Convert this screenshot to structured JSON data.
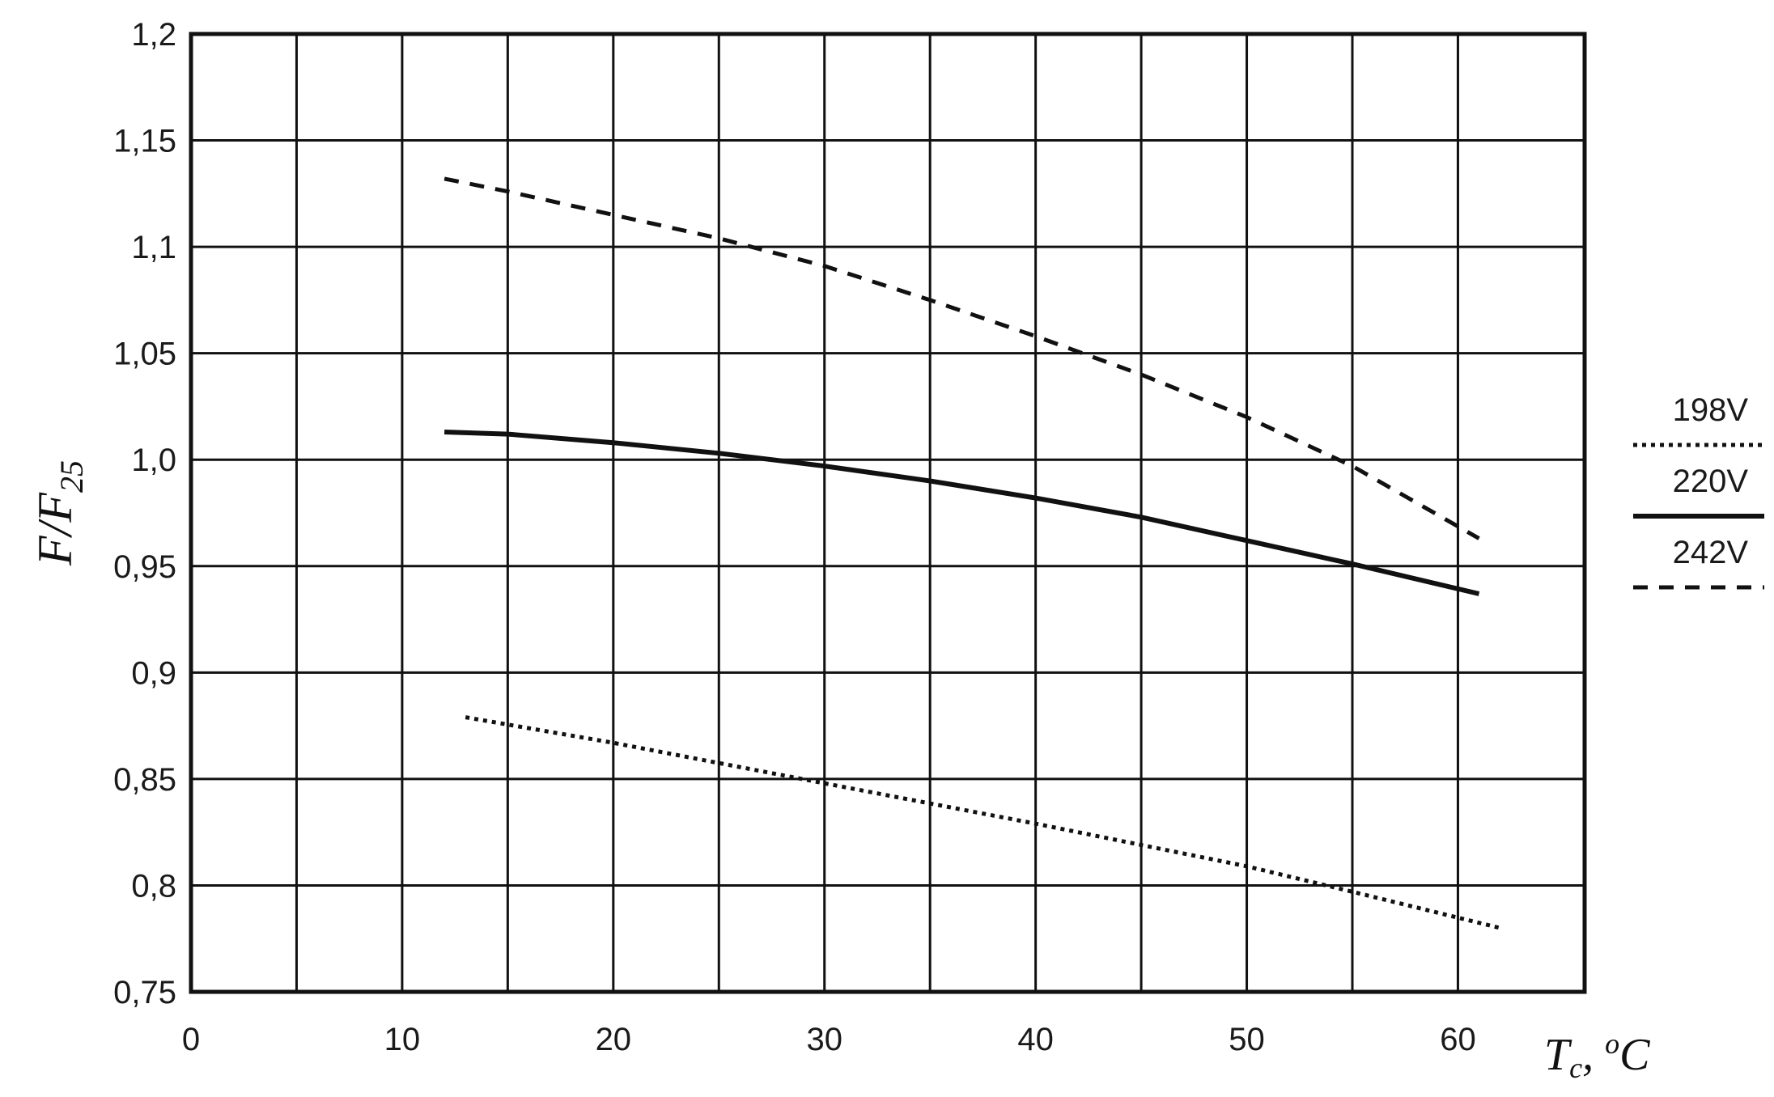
{
  "chart_data": {
    "type": "line",
    "title": "",
    "xlabel": {
      "main": "T",
      "sub": "c",
      "unit": "oC",
      "sep": ", "
    },
    "ylabel": {
      "main": "F/F",
      "sub": "25"
    },
    "xlim": [
      0,
      66
    ],
    "ylim": [
      0.75,
      1.2
    ],
    "x_ticks": [
      0,
      10,
      20,
      30,
      40,
      50,
      60
    ],
    "x_tick_labels": [
      "0",
      "10",
      "20",
      "30",
      "40",
      "50",
      "60"
    ],
    "x_gridlines": [
      5,
      10,
      15,
      20,
      25,
      30,
      35,
      40,
      45,
      50,
      55,
      60
    ],
    "y_ticks": [
      0.75,
      0.8,
      0.85,
      0.9,
      0.95,
      1.0,
      1.05,
      1.1,
      1.15,
      1.2
    ],
    "y_tick_labels": [
      "0,75",
      "0,8",
      "0,85",
      "0,9",
      "0,95",
      "1,0",
      "1,05",
      "1,1",
      "1,15",
      "1,2"
    ],
    "grid": true,
    "legend_position": "right",
    "series": [
      {
        "name": "198V",
        "style": "dotted",
        "color": "#111111",
        "x": [
          13,
          20,
          30,
          40,
          50,
          55,
          62
        ],
        "y": [
          0.879,
          0.867,
          0.848,
          0.829,
          0.809,
          0.797,
          0.78
        ]
      },
      {
        "name": "220V",
        "style": "solid",
        "color": "#111111",
        "x": [
          12,
          15,
          20,
          25,
          30,
          35,
          40,
          45,
          50,
          55,
          61
        ],
        "y": [
          1.013,
          1.012,
          1.008,
          1.003,
          0.997,
          0.99,
          0.982,
          0.973,
          0.962,
          0.951,
          0.937
        ]
      },
      {
        "name": "242V",
        "style": "dashed",
        "color": "#111111",
        "x": [
          12,
          15,
          20,
          25,
          30,
          35,
          40,
          45,
          50,
          55,
          61
        ],
        "y": [
          1.132,
          1.126,
          1.115,
          1.104,
          1.091,
          1.075,
          1.058,
          1.04,
          1.02,
          0.997,
          0.963
        ]
      }
    ]
  }
}
